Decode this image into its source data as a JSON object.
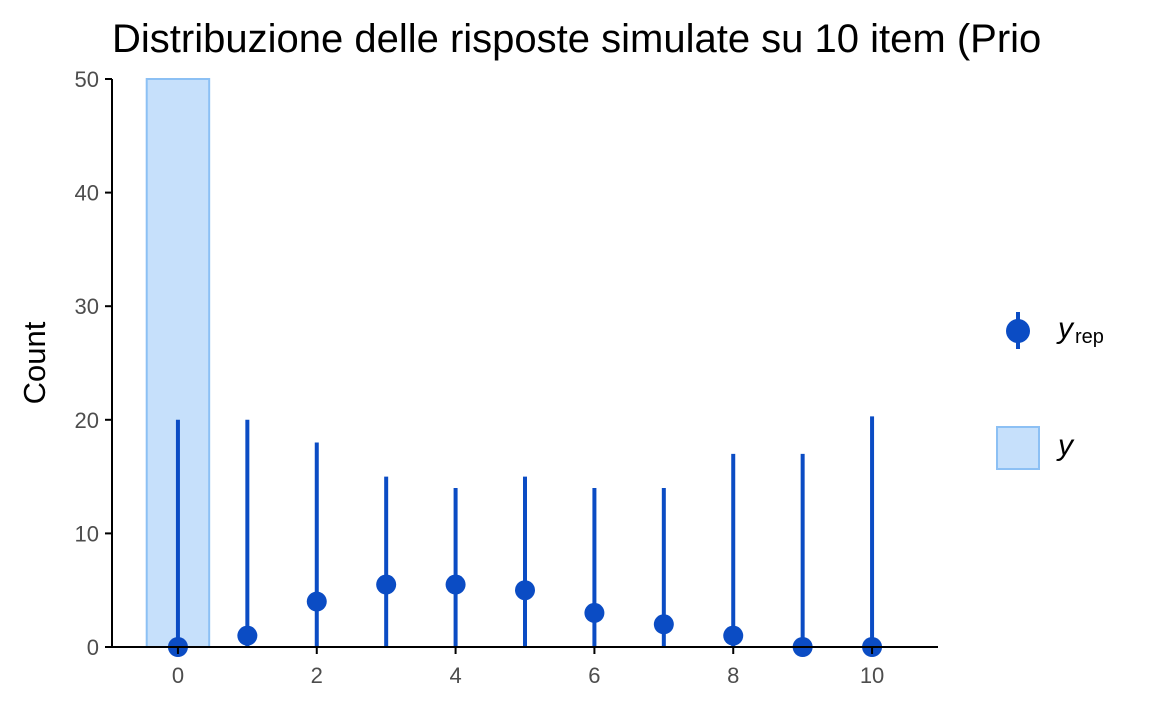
{
  "chart_data": {
    "type": "bar",
    "title": "Distribuzione delle risposte simulate su 10 item (Prio",
    "xlabel": "",
    "ylabel": "Count",
    "xlim": [
      -0.95,
      10.95
    ],
    "ylim": [
      0,
      50
    ],
    "x_ticks": [
      0,
      2,
      4,
      6,
      8,
      10
    ],
    "y_ticks": [
      0,
      10,
      20,
      30,
      40,
      50
    ],
    "grid": false,
    "legend_position": "right",
    "colors": {
      "observed_fill": "#c6e0fb",
      "observed_stroke": "#8cc0f4",
      "rep": "#0b4cc4",
      "axis": "#000000"
    },
    "observed": {
      "name": "y",
      "x": [
        0,
        1,
        2,
        3,
        4,
        5,
        6,
        7,
        8,
        9,
        10
      ],
      "values": [
        50,
        0,
        0,
        0,
        0,
        0,
        0,
        0,
        0,
        0,
        0
      ]
    },
    "replicated": {
      "name": "y",
      "name_sub": "rep",
      "x": [
        0,
        1,
        2,
        3,
        4,
        5,
        6,
        7,
        8,
        9,
        10
      ],
      "median": [
        0,
        1,
        4,
        5.5,
        5.5,
        5,
        3,
        2,
        1,
        0,
        0
      ],
      "lower": [
        0,
        0,
        0,
        0,
        0,
        0,
        0,
        0,
        0,
        0,
        0
      ],
      "upper": [
        20,
        20,
        18,
        15,
        14,
        15,
        14,
        14,
        17,
        17,
        20.3
      ]
    }
  }
}
